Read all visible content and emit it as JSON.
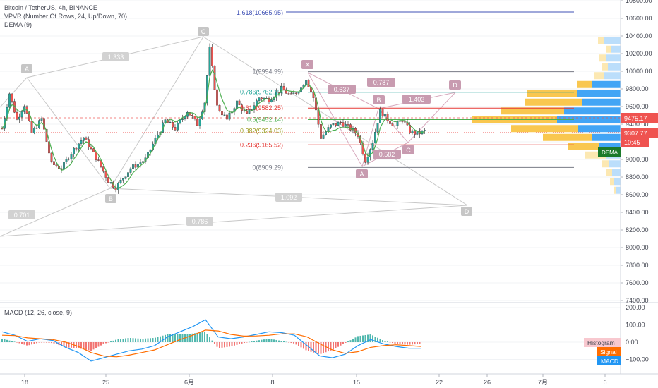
{
  "header": {
    "line1": "Bitcoin / TetherUS, 4h, BINANCE",
    "line2": "VPVR (Number Of Rows, 24, Up/Down, 70)",
    "line3": "DEMA (9)"
  },
  "price_axis": {
    "labels": [
      "10800.00",
      "10600.00",
      "10400.00",
      "10200.00",
      "10000.00",
      "9800.00",
      "9600.00",
      "9400.00",
      "9200.00",
      "9000.00",
      "8800.00",
      "8600.00",
      "8400.00",
      "8200.00",
      "8000.00",
      "7800.00",
      "7600.00",
      "7400.00"
    ],
    "badges": {
      "last_price": "9475.17",
      "current_price": "9307.77",
      "timer": "10:45",
      "dema": "DEMA"
    }
  },
  "time_axis": {
    "labels": [
      "18",
      "25",
      "6月",
      "8",
      "15",
      "22",
      "26",
      "7月",
      "6"
    ]
  },
  "fib": {
    "top": "1.618(10665.95)",
    "levels": [
      {
        "label": "1(9994.99)",
        "value": 9994.99,
        "color": "#787b86"
      },
      {
        "label": "0.786(9762.19)",
        "value": 9762.19,
        "color": "#26a69a"
      },
      {
        "label": "0.618(9582.25)",
        "value": 9582.25,
        "color": "#e53935"
      },
      {
        "label": "0.5(9452.14)",
        "value": 9452.14,
        "color": "#4caf50"
      },
      {
        "label": "0.382(9324.03)",
        "value": 9324.03,
        "color": "#9e9d24"
      },
      {
        "label": "0.236(9165.52)",
        "value": 9165.52,
        "color": "#e53935"
      },
      {
        "label": "0(8909.29)",
        "value": 8909.29,
        "color": "#787b86"
      }
    ]
  },
  "pattern_labels": {
    "big": {
      "A": "A",
      "B": "B",
      "C": "C",
      "D": "D",
      "r1": "1.333",
      "r2": "1.092",
      "r3": "0.701",
      "r4": "0.786"
    },
    "small": {
      "X": "X",
      "A": "A",
      "B": "B",
      "C": "C",
      "D": "D",
      "r1": "0.637",
      "r2": "0.787",
      "r3": "1.403",
      "r4": "0.582"
    }
  },
  "macd": {
    "title": "MACD (12, 26, close, 9)",
    "axis_labels": [
      "200.00",
      "100.00",
      "0.00",
      "−100.00"
    ],
    "legend": {
      "histogram": "Histogram",
      "signal": "Signal",
      "macd": "MACD"
    }
  },
  "colors": {
    "up": "#26a69a",
    "down": "#ef5350",
    "dema": "#4caf50",
    "vp_up": "#42a5f5",
    "vp_down": "#f9c74f",
    "macd": "#2196f3",
    "signal": "#ff6d00",
    "pattern": "#c89bb0"
  },
  "chart_data": {
    "type": "candlestick",
    "symbol": "BTCUSDT",
    "interval": "4h",
    "ylim": [
      7400,
      10800
    ],
    "anchors": [
      {
        "t": 0,
        "p": 9350
      },
      {
        "t": 3,
        "p": 9750
      },
      {
        "t": 6,
        "p": 9450
      },
      {
        "t": 9,
        "p": 9620
      },
      {
        "t": 12,
        "p": 9300
      },
      {
        "t": 16,
        "p": 9460
      },
      {
        "t": 20,
        "p": 8950
      },
      {
        "t": 24,
        "p": 8900
      },
      {
        "t": 28,
        "p": 9080
      },
      {
        "t": 33,
        "p": 9250
      },
      {
        "t": 38,
        "p": 9020
      },
      {
        "t": 43,
        "p": 8760
      },
      {
        "t": 46,
        "p": 8680
      },
      {
        "t": 52,
        "p": 8900
      },
      {
        "t": 58,
        "p": 9000
      },
      {
        "t": 62,
        "p": 9230
      },
      {
        "t": 66,
        "p": 9440
      },
      {
        "t": 70,
        "p": 9350
      },
      {
        "t": 75,
        "p": 9550
      },
      {
        "t": 79,
        "p": 9400
      },
      {
        "t": 82,
        "p": 9650
      },
      {
        "t": 84,
        "p": 10250
      },
      {
        "t": 87,
        "p": 9600
      },
      {
        "t": 91,
        "p": 9450
      },
      {
        "t": 95,
        "p": 9650
      },
      {
        "t": 99,
        "p": 9500
      },
      {
        "t": 104,
        "p": 9700
      },
      {
        "t": 108,
        "p": 9680
      },
      {
        "t": 113,
        "p": 9800
      },
      {
        "t": 117,
        "p": 9720
      },
      {
        "t": 121,
        "p": 9810
      },
      {
        "t": 123,
        "p": 9920
      },
      {
        "t": 126,
        "p": 9700
      },
      {
        "t": 129,
        "p": 9250
      },
      {
        "t": 133,
        "p": 9380
      },
      {
        "t": 137,
        "p": 9420
      },
      {
        "t": 141,
        "p": 9350
      },
      {
        "t": 144,
        "p": 9280
      },
      {
        "t": 147,
        "p": 8990
      },
      {
        "t": 150,
        "p": 9200
      },
      {
        "t": 153,
        "p": 9550
      },
      {
        "t": 156,
        "p": 9450
      },
      {
        "t": 159,
        "p": 9380
      },
      {
        "t": 162,
        "p": 9450
      },
      {
        "t": 165,
        "p": 9320
      },
      {
        "t": 168,
        "p": 9290
      },
      {
        "t": 171,
        "p": 9320
      }
    ],
    "macd_series": {
      "macd": [
        60,
        40,
        5,
        20,
        10,
        -30,
        -60,
        -110,
        -90,
        -70,
        -50,
        -40,
        -20,
        30,
        60,
        90,
        130,
        30,
        20,
        30,
        45,
        60,
        55,
        40,
        -20,
        -80,
        -90,
        -70,
        -20,
        15,
        -10,
        -25,
        -35,
        -35
      ],
      "signal": [
        40,
        38,
        25,
        20,
        15,
        0,
        -25,
        -60,
        -80,
        -85,
        -75,
        -60,
        -45,
        -15,
        15,
        40,
        70,
        65,
        45,
        35,
        36,
        40,
        48,
        48,
        30,
        -10,
        -45,
        -65,
        -55,
        -30,
        -20,
        -15,
        -20,
        -25
      ]
    }
  }
}
